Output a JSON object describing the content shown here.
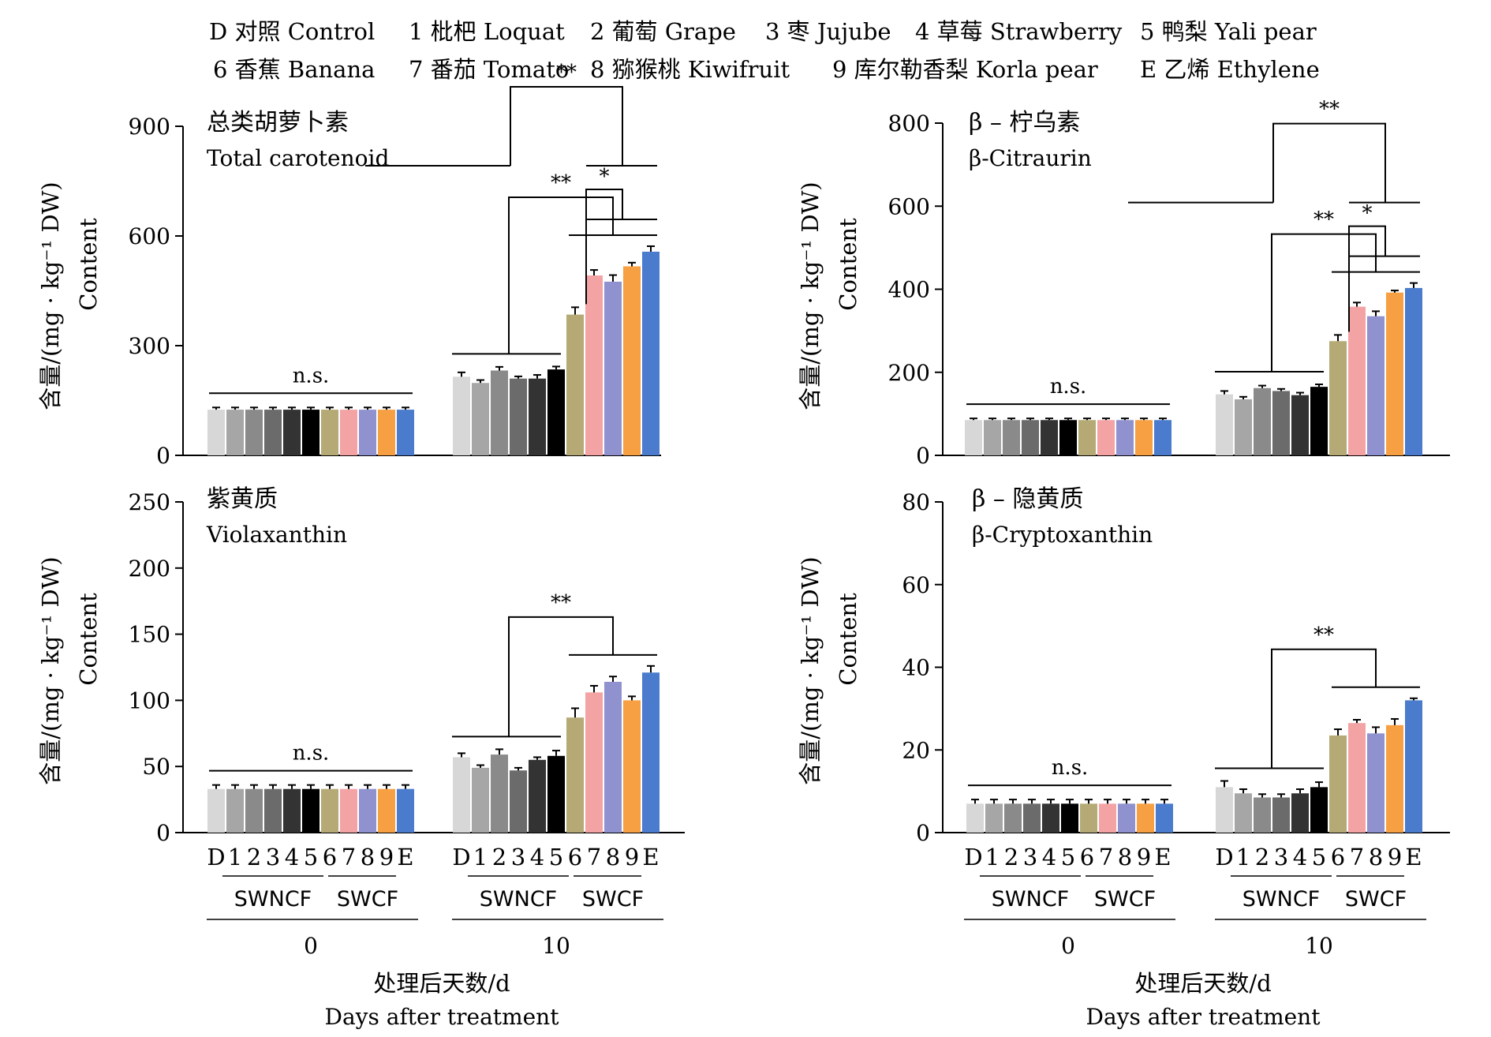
{
  "legend": {
    "items": [
      {
        "key": "D",
        "label": "对照 Control"
      },
      {
        "key": "1",
        "label": "枇杷 Loquat"
      },
      {
        "key": "2",
        "label": "葡萄 Grape"
      },
      {
        "key": "3",
        "label": "枣 Jujube"
      },
      {
        "key": "4",
        "label": "草莓 Strawberry"
      },
      {
        "key": "5",
        "label": "鸭梨 Yali pear"
      },
      {
        "key": "6",
        "label": "香蕉 Banana"
      },
      {
        "key": "7",
        "label": "番茄 Tomato"
      },
      {
        "key": "8",
        "label": "猕猴桃 Kiwifruit"
      },
      {
        "key": "9",
        "label": "库尔勒香梨 Korla pear"
      },
      {
        "key": "E",
        "label": "乙烯 Ethylene"
      }
    ]
  },
  "colors": {
    "D": "#d7d7d7",
    "1": "#a6a6a6",
    "2": "#8a8a8a",
    "3": "#6b6b6b",
    "4": "#4f4f4f",
    "5": "#333333",
    "black": "#000000",
    "6": "#b5aa76",
    "7": "#f4a3a5",
    "8": "#8f92cf",
    "9": "#f7a043",
    "E": "#4a7bcc"
  },
  "axis_common": {
    "ylabel_cn": "含量/(mg · kg⁻¹ DW)",
    "ylabel_en": "Content",
    "xlabel_cn": "处理后天数/d",
    "xlabel_en": "Days after treatment",
    "group_labels": [
      "0",
      "10"
    ],
    "sub_labels": [
      "SWNCF",
      "SWCF"
    ],
    "bar_keys": [
      "D",
      "1",
      "2",
      "3",
      "4",
      "5",
      "6",
      "7",
      "8",
      "9",
      "E"
    ]
  },
  "chart_data": [
    {
      "type": "bar",
      "title_cn": "总类胡萝卜素",
      "title_en": "Total carotenoid",
      "ylim": [
        0,
        900
      ],
      "yticks": [
        0,
        300,
        600,
        900
      ],
      "categories": [
        "0",
        "10"
      ],
      "series": [
        {
          "key": "D",
          "values": [
            125,
            215
          ],
          "errors": [
            6,
            12
          ]
        },
        {
          "key": "1",
          "values": [
            125,
            198
          ],
          "errors": [
            6,
            8
          ]
        },
        {
          "key": "2",
          "values": [
            125,
            232
          ],
          "errors": [
            6,
            10
          ]
        },
        {
          "key": "3",
          "values": [
            125,
            210
          ],
          "errors": [
            6,
            6
          ]
        },
        {
          "key": "4",
          "values": [
            125,
            210
          ],
          "errors": [
            6,
            10
          ]
        },
        {
          "key": "5",
          "values": [
            125,
            235
          ],
          "errors": [
            6,
            8
          ]
        },
        {
          "key": "6",
          "values": [
            125,
            385
          ],
          "errors": [
            6,
            20
          ]
        },
        {
          "key": "7",
          "values": [
            125,
            492
          ],
          "errors": [
            6,
            15
          ]
        },
        {
          "key": "8",
          "values": [
            125,
            475
          ],
          "errors": [
            6,
            18
          ]
        },
        {
          "key": "9",
          "values": [
            125,
            517
          ],
          "errors": [
            6,
            10
          ]
        },
        {
          "key": "E",
          "values": [
            125,
            557
          ],
          "errors": [
            6,
            15
          ]
        }
      ],
      "annotations": [
        "n.s.",
        "**",
        "*",
        "**"
      ]
    },
    {
      "type": "bar",
      "title_cn": "β – 柠乌素",
      "title_en": "β-Citraurin",
      "ylim": [
        0,
        800
      ],
      "yticks": [
        0,
        200,
        400,
        600,
        800
      ],
      "categories": [
        "0",
        "10"
      ],
      "series": [
        {
          "key": "D",
          "values": [
            85,
            147
          ],
          "errors": [
            4,
            8
          ]
        },
        {
          "key": "1",
          "values": [
            85,
            135
          ],
          "errors": [
            4,
            6
          ]
        },
        {
          "key": "2",
          "values": [
            85,
            162
          ],
          "errors": [
            4,
            6
          ]
        },
        {
          "key": "3",
          "values": [
            85,
            155
          ],
          "errors": [
            4,
            5
          ]
        },
        {
          "key": "4",
          "values": [
            85,
            145
          ],
          "errors": [
            4,
            6
          ]
        },
        {
          "key": "5",
          "values": [
            85,
            165
          ],
          "errors": [
            4,
            6
          ]
        },
        {
          "key": "6",
          "values": [
            85,
            275
          ],
          "errors": [
            4,
            15
          ]
        },
        {
          "key": "7",
          "values": [
            85,
            358
          ],
          "errors": [
            4,
            10
          ]
        },
        {
          "key": "8",
          "values": [
            85,
            335
          ],
          "errors": [
            4,
            12
          ]
        },
        {
          "key": "9",
          "values": [
            85,
            392
          ],
          "errors": [
            4,
            5
          ]
        },
        {
          "key": "E",
          "values": [
            85,
            403
          ],
          "errors": [
            4,
            12
          ]
        }
      ],
      "annotations": [
        "n.s.",
        "**",
        "*",
        "**"
      ]
    },
    {
      "type": "bar",
      "title_cn": "紫黄质",
      "title_en": "Violaxanthin",
      "ylim": [
        0,
        250
      ],
      "yticks": [
        0,
        50,
        100,
        150,
        200,
        250
      ],
      "categories": [
        "0",
        "10"
      ],
      "series": [
        {
          "key": "D",
          "values": [
            33,
            57
          ],
          "errors": [
            3,
            3
          ]
        },
        {
          "key": "1",
          "values": [
            33,
            49
          ],
          "errors": [
            3,
            2
          ]
        },
        {
          "key": "2",
          "values": [
            33,
            59
          ],
          "errors": [
            3,
            4
          ]
        },
        {
          "key": "3",
          "values": [
            33,
            47
          ],
          "errors": [
            3,
            2
          ]
        },
        {
          "key": "4",
          "values": [
            33,
            55
          ],
          "errors": [
            3,
            2
          ]
        },
        {
          "key": "5",
          "values": [
            33,
            58
          ],
          "errors": [
            3,
            4
          ]
        },
        {
          "key": "6",
          "values": [
            33,
            87
          ],
          "errors": [
            3,
            7
          ]
        },
        {
          "key": "7",
          "values": [
            33,
            106
          ],
          "errors": [
            3,
            5
          ]
        },
        {
          "key": "8",
          "values": [
            33,
            114
          ],
          "errors": [
            3,
            4
          ]
        },
        {
          "key": "9",
          "values": [
            33,
            100
          ],
          "errors": [
            3,
            3
          ]
        },
        {
          "key": "E",
          "values": [
            33,
            121
          ],
          "errors": [
            3,
            5
          ]
        }
      ],
      "annotations": [
        "n.s.",
        "**"
      ]
    },
    {
      "type": "bar",
      "title_cn": "β – 隐黄质",
      "title_en": "β-Cryptoxanthin",
      "ylim": [
        0,
        80
      ],
      "yticks": [
        0,
        20,
        40,
        60,
        80
      ],
      "categories": [
        "0",
        "10"
      ],
      "series": [
        {
          "key": "D",
          "values": [
            7,
            11
          ],
          "errors": [
            1,
            1.5
          ]
        },
        {
          "key": "1",
          "values": [
            7,
            9.5
          ],
          "errors": [
            1,
            1
          ]
        },
        {
          "key": "2",
          "values": [
            7,
            8.5
          ],
          "errors": [
            1,
            0.8
          ]
        },
        {
          "key": "3",
          "values": [
            7,
            8.5
          ],
          "errors": [
            1,
            0.8
          ]
        },
        {
          "key": "4",
          "values": [
            7,
            9.5
          ],
          "errors": [
            1,
            1
          ]
        },
        {
          "key": "5",
          "values": [
            7,
            11
          ],
          "errors": [
            1,
            1.2
          ]
        },
        {
          "key": "6",
          "values": [
            7,
            23.5
          ],
          "errors": [
            1,
            1.5
          ]
        },
        {
          "key": "7",
          "values": [
            7,
            26.5
          ],
          "errors": [
            1,
            0.8
          ]
        },
        {
          "key": "8",
          "values": [
            7,
            24
          ],
          "errors": [
            1,
            1.5
          ]
        },
        {
          "key": "9",
          "values": [
            7,
            26
          ],
          "errors": [
            1,
            1.5
          ]
        },
        {
          "key": "E",
          "values": [
            7,
            32
          ],
          "errors": [
            1,
            0.5
          ]
        }
      ],
      "annotations": [
        "n.s.",
        "**"
      ]
    }
  ]
}
